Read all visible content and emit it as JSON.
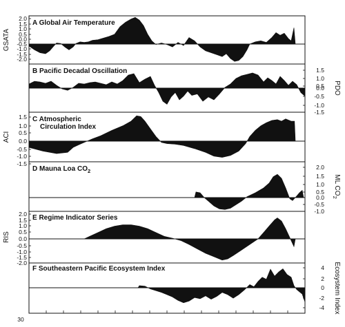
{
  "chart_data": {
    "type": "area",
    "x_bottom_label": "30",
    "panels": [
      {
        "letter": "A",
        "title": "Global Air Temperature",
        "title_sub": "",
        "ylabel": "GSATA",
        "ylabel_sub": "",
        "axis_side": "left",
        "ticks": [
          "2.0",
          "1.5",
          "1.0",
          "0.5",
          "0.0",
          "-0.5",
          "-1.0",
          "-1.5",
          "-2.0"
        ],
        "ylim": [
          -2.0,
          2.4
        ],
        "series": [
          [
            0,
            -0.2
          ],
          [
            0.02,
            -0.6
          ],
          [
            0.04,
            -0.9
          ],
          [
            0.06,
            -1.0
          ],
          [
            0.075,
            -0.7
          ],
          [
            0.09,
            -0.2
          ],
          [
            0.1,
            0.1
          ],
          [
            0.115,
            0.05
          ],
          [
            0.13,
            -0.3
          ],
          [
            0.145,
            -0.6
          ],
          [
            0.16,
            -0.3
          ],
          [
            0.17,
            0.05
          ],
          [
            0.185,
            0.2
          ],
          [
            0.2,
            0.15
          ],
          [
            0.215,
            0.2
          ],
          [
            0.23,
            0.35
          ],
          [
            0.25,
            0.4
          ],
          [
            0.27,
            0.55
          ],
          [
            0.29,
            0.7
          ],
          [
            0.31,
            0.9
          ],
          [
            0.33,
            1.6
          ],
          [
            0.35,
            2.0
          ],
          [
            0.37,
            2.3
          ],
          [
            0.385,
            2.45
          ],
          [
            0.4,
            2.2
          ],
          [
            0.415,
            1.7
          ],
          [
            0.43,
            0.9
          ],
          [
            0.445,
            0.3
          ],
          [
            0.46,
            -0.05
          ],
          [
            0.48,
            0.1
          ],
          [
            0.5,
            -0.05
          ],
          [
            0.52,
            -0.3
          ],
          [
            0.54,
            0.15
          ],
          [
            0.56,
            -0.15
          ],
          [
            0.58,
            0.6
          ],
          [
            0.6,
            0.3
          ],
          [
            0.62,
            -0.3
          ],
          [
            0.64,
            -0.7
          ],
          [
            0.66,
            -0.9
          ],
          [
            0.68,
            -1.1
          ],
          [
            0.7,
            -1.3
          ],
          [
            0.715,
            -1.0
          ],
          [
            0.73,
            -1.5
          ],
          [
            0.745,
            -1.8
          ],
          [
            0.76,
            -1.7
          ],
          [
            0.775,
            -1.3
          ],
          [
            0.79,
            -0.6
          ],
          [
            0.8,
            0.0
          ],
          [
            0.82,
            0.2
          ],
          [
            0.84,
            0.3
          ],
          [
            0.86,
            0.15
          ],
          [
            0.88,
            0.6
          ],
          [
            0.895,
            1.05
          ],
          [
            0.91,
            0.8
          ],
          [
            0.925,
            1.0
          ],
          [
            0.94,
            0.5
          ],
          [
            0.95,
            0.3
          ],
          [
            0.96,
            1.5
          ],
          [
            0.965,
            0.0
          ]
        ]
      },
      {
        "letter": "B",
        "title": "Pacific Decadal Oscillation",
        "title_sub": "",
        "ylabel": "PDO",
        "ylabel_sub": "",
        "axis_side": "right",
        "ticks": [
          "1.5",
          "1.0",
          "0.5",
          "0.0",
          "-0.5",
          "-1.0",
          "-1.5"
        ],
        "ylim": [
          -1.6,
          1.6
        ],
        "series": [
          [
            0,
            0.3
          ],
          [
            0.02,
            0.5
          ],
          [
            0.04,
            0.45
          ],
          [
            0.06,
            0.35
          ],
          [
            0.08,
            0.5
          ],
          [
            0.1,
            0.2
          ],
          [
            0.12,
            -0.05
          ],
          [
            0.14,
            -0.15
          ],
          [
            0.16,
            0.05
          ],
          [
            0.18,
            0.35
          ],
          [
            0.2,
            0.3
          ],
          [
            0.22,
            0.4
          ],
          [
            0.24,
            0.45
          ],
          [
            0.26,
            0.35
          ],
          [
            0.28,
            0.25
          ],
          [
            0.3,
            0.45
          ],
          [
            0.32,
            0.3
          ],
          [
            0.34,
            0.55
          ],
          [
            0.36,
            0.95
          ],
          [
            0.38,
            1.05
          ],
          [
            0.4,
            0.4
          ],
          [
            0.42,
            0.65
          ],
          [
            0.44,
            0.85
          ],
          [
            0.455,
            0.2
          ],
          [
            0.47,
            -0.3
          ],
          [
            0.485,
            -0.9
          ],
          [
            0.5,
            -1.1
          ],
          [
            0.515,
            -0.6
          ],
          [
            0.53,
            -0.3
          ],
          [
            0.545,
            -0.8
          ],
          [
            0.56,
            -0.55
          ],
          [
            0.575,
            -0.2
          ],
          [
            0.59,
            -0.5
          ],
          [
            0.61,
            -0.4
          ],
          [
            0.63,
            -0.9
          ],
          [
            0.65,
            -0.6
          ],
          [
            0.67,
            -0.8
          ],
          [
            0.69,
            -0.4
          ],
          [
            0.71,
            0.05
          ],
          [
            0.73,
            0.3
          ],
          [
            0.75,
            0.7
          ],
          [
            0.77,
            0.9
          ],
          [
            0.79,
            1.0
          ],
          [
            0.81,
            1.1
          ],
          [
            0.83,
            0.95
          ],
          [
            0.85,
            0.45
          ],
          [
            0.865,
            0.75
          ],
          [
            0.88,
            0.55
          ],
          [
            0.895,
            0.3
          ],
          [
            0.91,
            0.85
          ],
          [
            0.925,
            0.55
          ],
          [
            0.94,
            0.2
          ],
          [
            0.955,
            0.5
          ],
          [
            0.97,
            0.25
          ],
          [
            0.985,
            -0.3
          ],
          [
            1.0,
            -0.55
          ]
        ]
      },
      {
        "letter": "C",
        "title": "Atmospheric",
        "title_line2": "Circulation Index",
        "title_sub": "",
        "ylabel": "ACI",
        "ylabel_sub": "",
        "axis_side": "left",
        "ticks": [
          "1.5",
          "1.0",
          "0.5",
          "0.0",
          "-0.5",
          "-1.0",
          "-1.5"
        ],
        "ylim": [
          -1.6,
          1.75
        ],
        "series": [
          [
            0,
            -0.5
          ],
          [
            0.05,
            -0.8
          ],
          [
            0.1,
            -1.0
          ],
          [
            0.14,
            -0.9
          ],
          [
            0.16,
            -0.5
          ],
          [
            0.18,
            -0.3
          ],
          [
            0.2,
            -0.1
          ],
          [
            0.23,
            0.15
          ],
          [
            0.26,
            0.35
          ],
          [
            0.3,
            0.7
          ],
          [
            0.34,
            1.0
          ],
          [
            0.37,
            1.3
          ],
          [
            0.39,
            1.65
          ],
          [
            0.405,
            1.6
          ],
          [
            0.42,
            1.3
          ],
          [
            0.44,
            0.8
          ],
          [
            0.46,
            0.3
          ],
          [
            0.48,
            -0.1
          ],
          [
            0.5,
            -0.2
          ],
          [
            0.53,
            -0.25
          ],
          [
            0.56,
            -0.35
          ],
          [
            0.6,
            -0.6
          ],
          [
            0.64,
            -0.9
          ],
          [
            0.67,
            -1.2
          ],
          [
            0.7,
            -1.3
          ],
          [
            0.73,
            -1.15
          ],
          [
            0.76,
            -0.8
          ],
          [
            0.785,
            -0.2
          ],
          [
            0.8,
            0.3
          ],
          [
            0.82,
            0.7
          ],
          [
            0.84,
            1.0
          ],
          [
            0.86,
            1.2
          ],
          [
            0.88,
            1.35
          ],
          [
            0.9,
            1.4
          ],
          [
            0.915,
            1.3
          ],
          [
            0.93,
            1.45
          ],
          [
            0.95,
            1.3
          ],
          [
            0.962,
            1.3
          ],
          [
            0.965,
            0.0
          ]
        ]
      },
      {
        "letter": "D",
        "title": "Mauna Loa CO",
        "title_sub": "2",
        "ylabel": "ML CO",
        "ylabel_sub": "2",
        "axis_side": "right",
        "ticks": [
          "2.0",
          "1.5",
          "1.0",
          "0.5",
          "0.0",
          "-0.5",
          "-1.0"
        ],
        "ylim": [
          -1.1,
          2.1
        ],
        "series": [
          [
            0.6,
            0.0
          ],
          [
            0.605,
            0.35
          ],
          [
            0.62,
            0.3
          ],
          [
            0.635,
            0.0
          ],
          [
            0.65,
            -0.3
          ],
          [
            0.67,
            -0.7
          ],
          [
            0.69,
            -0.95
          ],
          [
            0.71,
            -1.0
          ],
          [
            0.73,
            -0.9
          ],
          [
            0.75,
            -0.6
          ],
          [
            0.77,
            -0.3
          ],
          [
            0.79,
            0.05
          ],
          [
            0.82,
            0.3
          ],
          [
            0.85,
            0.6
          ],
          [
            0.87,
            0.9
          ],
          [
            0.885,
            1.3
          ],
          [
            0.9,
            1.45
          ],
          [
            0.915,
            1.2
          ],
          [
            0.93,
            0.6
          ],
          [
            0.945,
            -0.1
          ],
          [
            0.955,
            -0.25
          ],
          [
            0.97,
            0.1
          ],
          [
            0.98,
            0.3
          ],
          [
            0.99,
            0.45
          ],
          [
            0.995,
            0.0
          ]
        ]
      },
      {
        "letter": "E",
        "title": "Regime Indicator Series",
        "title_sub": "",
        "ylabel": "RIS",
        "ylabel_sub": "",
        "axis_side": "left",
        "ticks": [
          "2.0",
          "1.5",
          "1.0",
          "0.5",
          "0.0",
          "-0.5",
          "-1.0",
          "-1.5",
          "-2.0"
        ],
        "ylim": [
          -2.1,
          2.0
        ],
        "series": [
          [
            0.2,
            0.0
          ],
          [
            0.22,
            0.2
          ],
          [
            0.25,
            0.5
          ],
          [
            0.28,
            0.8
          ],
          [
            0.31,
            1.0
          ],
          [
            0.34,
            1.1
          ],
          [
            0.37,
            1.1
          ],
          [
            0.4,
            1.0
          ],
          [
            0.43,
            0.8
          ],
          [
            0.46,
            0.5
          ],
          [
            0.49,
            0.2
          ],
          [
            0.52,
            0.05
          ],
          [
            0.55,
            -0.15
          ],
          [
            0.58,
            -0.5
          ],
          [
            0.61,
            -0.9
          ],
          [
            0.64,
            -1.3
          ],
          [
            0.67,
            -1.6
          ],
          [
            0.7,
            -1.9
          ],
          [
            0.72,
            -1.8
          ],
          [
            0.74,
            -1.5
          ],
          [
            0.77,
            -1.0
          ],
          [
            0.8,
            -0.5
          ],
          [
            0.83,
            0.0
          ],
          [
            0.85,
            0.5
          ],
          [
            0.87,
            1.0
          ],
          [
            0.89,
            1.5
          ],
          [
            0.9,
            1.65
          ],
          [
            0.915,
            1.4
          ],
          [
            0.93,
            0.8
          ],
          [
            0.945,
            0.1
          ],
          [
            0.96,
            -0.7
          ],
          [
            0.965,
            0.0
          ]
        ]
      },
      {
        "letter": "F",
        "title": "Southeastern Pacific Ecosystem Index",
        "title_sub": "",
        "ylabel": "Ecosystem Index",
        "ylabel_sub": "",
        "axis_side": "right",
        "ticks": [
          "4",
          "2",
          "0",
          "-2",
          "-4"
        ],
        "ylim": [
          -4.3,
          4.3
        ],
        "series": [
          [
            0.395,
            0.0
          ],
          [
            0.4,
            0.4
          ],
          [
            0.42,
            0.3
          ],
          [
            0.44,
            -0.2
          ],
          [
            0.46,
            -0.5
          ],
          [
            0.48,
            -0.8
          ],
          [
            0.5,
            -1.2
          ],
          [
            0.52,
            -1.6
          ],
          [
            0.54,
            -2.2
          ],
          [
            0.56,
            -2.6
          ],
          [
            0.58,
            -2.3
          ],
          [
            0.6,
            -1.7
          ],
          [
            0.62,
            -1.9
          ],
          [
            0.64,
            -1.4
          ],
          [
            0.66,
            -2.0
          ],
          [
            0.68,
            -1.5
          ],
          [
            0.7,
            -0.8
          ],
          [
            0.72,
            -1.2
          ],
          [
            0.74,
            -1.8
          ],
          [
            0.76,
            -1.2
          ],
          [
            0.78,
            -0.4
          ],
          [
            0.8,
            0.6
          ],
          [
            0.815,
            0.2
          ],
          [
            0.83,
            1.2
          ],
          [
            0.845,
            2.0
          ],
          [
            0.86,
            1.6
          ],
          [
            0.875,
            3.5
          ],
          [
            0.89,
            2.2
          ],
          [
            0.905,
            3.0
          ],
          [
            0.92,
            3.6
          ],
          [
            0.935,
            2.5
          ],
          [
            0.95,
            2.0
          ],
          [
            0.96,
            0.4
          ],
          [
            0.97,
            -0.3
          ],
          [
            0.98,
            -0.7
          ],
          [
            0.99,
            -1.1
          ],
          [
            1.0,
            -2.5
          ]
        ]
      }
    ]
  }
}
